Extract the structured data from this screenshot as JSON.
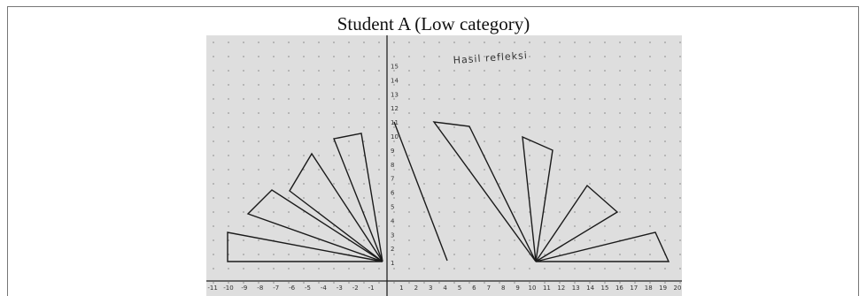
{
  "caption": "Student A (Low category)",
  "photo": {
    "note": "Hasil refleksi",
    "x_labels": [
      -11,
      -10,
      -9,
      -8,
      -7,
      -6,
      -5,
      -4,
      -3,
      -2,
      -1,
      1,
      2,
      3,
      4,
      5,
      6,
      7,
      8,
      9,
      10,
      11,
      12,
      13,
      14,
      15,
      16,
      17,
      18,
      19,
      20
    ],
    "y_labels": [
      1,
      2,
      3,
      4,
      5,
      6,
      7,
      8,
      9,
      10,
      11,
      12,
      13,
      14,
      15
    ]
  }
}
